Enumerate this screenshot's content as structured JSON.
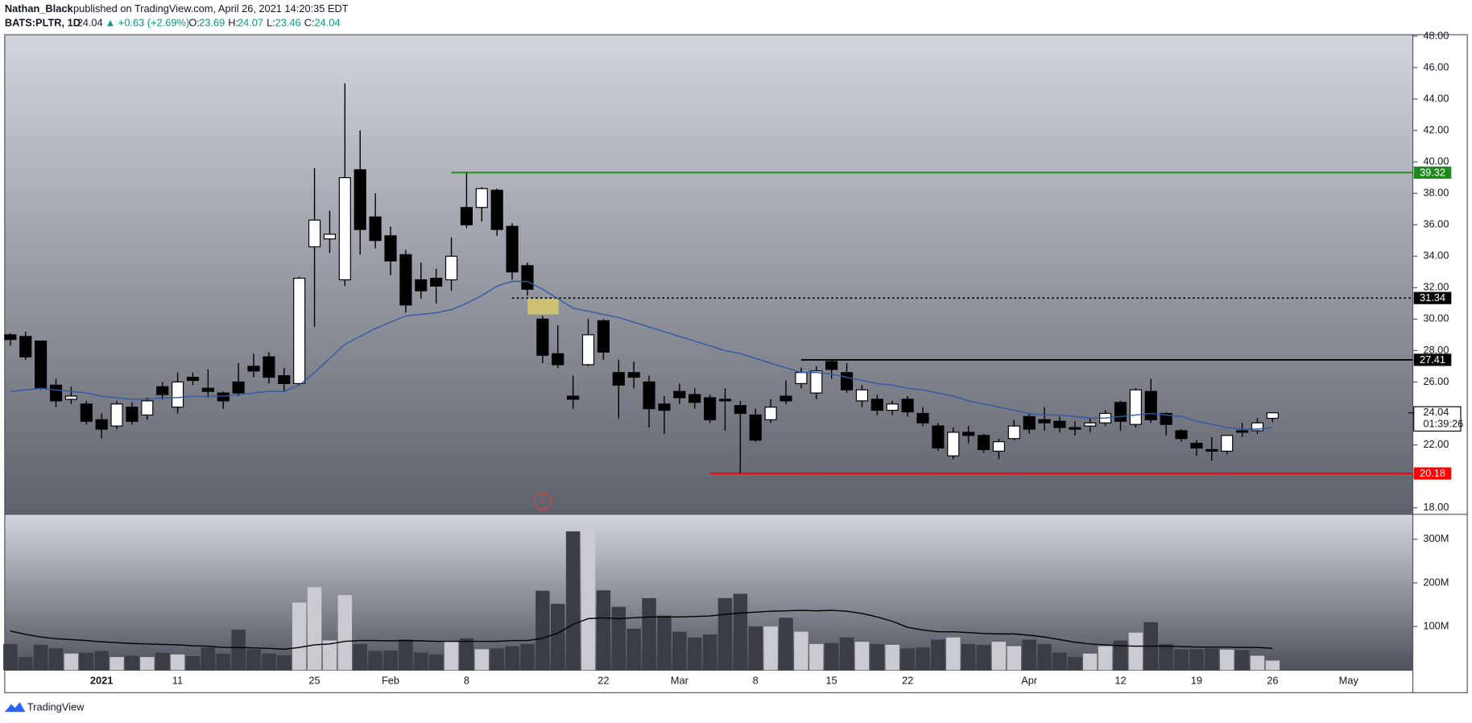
{
  "header": {
    "publisher": "Nathan_Black",
    "published": "published on TradingView.com, April 26, 2021 14:20:35 EDT",
    "symbol": "BATS:PLTR, 1D",
    "price": "24.04",
    "change": "▲ +0.63 (+2.69%)",
    "o_label": "O:",
    "o": "23.69",
    "h_label": "H:",
    "h": "24.07",
    "l_label": "L:",
    "l": "23.46",
    "c_label": "C:",
    "c": "24.04"
  },
  "footer": {
    "brand": "TradingView"
  },
  "chart_data": {
    "type": "candlestick",
    "categories": [
      null,
      null,
      null,
      null,
      null,
      null,
      "2021",
      null,
      null,
      null,
      null,
      "11",
      null,
      null,
      null,
      null,
      null,
      null,
      null,
      null,
      "25",
      null,
      null,
      null,
      null,
      "Feb",
      null,
      null,
      null,
      null,
      "8",
      null,
      null,
      null,
      null,
      null,
      null,
      null,
      null,
      "22",
      null,
      null,
      null,
      null,
      "Mar",
      null,
      null,
      null,
      null,
      "8",
      null,
      null,
      null,
      null,
      "15",
      null,
      null,
      null,
      null,
      "22",
      null,
      null,
      null,
      null,
      null,
      null,
      null,
      "Apr",
      null,
      null,
      null,
      null,
      null,
      "12",
      null,
      null,
      null,
      null,
      "19",
      null,
      null,
      null,
      null,
      "26",
      null,
      null,
      null,
      null,
      "May"
    ],
    "open": [
      29.0,
      28.9,
      28.6,
      25.8,
      24.9,
      24.6,
      23.6,
      23.2,
      24.4,
      23.9,
      25.7,
      24.4,
      26.3,
      25.6,
      25.3,
      26.0,
      27.0,
      27.6,
      26.4,
      25.9,
      34.6,
      35.1,
      32.5,
      39.5,
      36.5,
      35.3,
      34.1,
      32.5,
      32.6,
      32.5,
      37.1,
      37.1,
      38.2,
      35.9,
      33.4,
      30.0,
      27.8,
      25.1,
      27.1,
      29.9,
      26.6,
      26.6,
      26.0,
      24.6,
      25.4,
      25.2,
      25.0,
      24.9,
      24.5,
      23.9,
      23.6,
      25.1,
      25.9,
      25.3,
      27.3,
      26.6,
      24.8,
      24.9,
      24.2,
      24.9,
      24.0,
      23.2,
      21.3,
      22.8,
      22.6,
      21.6,
      22.4,
      23.8,
      23.6,
      23.5,
      23.1,
      23.2,
      23.4,
      24.7,
      23.3,
      25.4,
      24.0,
      22.9,
      22.1,
      21.7,
      21.6,
      22.9,
      22.9,
      23.69,
      null,
      null,
      null,
      null,
      null
    ],
    "high": [
      29.1,
      29.2,
      28.6,
      26.2,
      25.7,
      24.8,
      24.0,
      24.8,
      24.7,
      25.0,
      26.0,
      26.6,
      26.6,
      26.8,
      25.4,
      27.2,
      27.8,
      27.9,
      26.9,
      32.7,
      39.6,
      36.9,
      45.0,
      42.0,
      38.0,
      35.9,
      34.4,
      33.6,
      33.2,
      35.2,
      39.3,
      38.4,
      38.3,
      36.1,
      33.6,
      30.2,
      29.6,
      26.4,
      30.0,
      30.0,
      27.4,
      27.3,
      26.4,
      25.1,
      25.9,
      25.6,
      25.2,
      25.6,
      24.8,
      24.3,
      24.9,
      26.1,
      26.9,
      27.0,
      27.4,
      27.2,
      25.8,
      25.2,
      24.8,
      25.1,
      24.4,
      23.4,
      23.1,
      23.2,
      22.7,
      22.4,
      23.6,
      24.0,
      24.4,
      23.8,
      23.5,
      23.7,
      24.2,
      24.8,
      25.6,
      26.2,
      24.1,
      23.0,
      22.3,
      22.5,
      22.6,
      23.4,
      23.7,
      24.07,
      null,
      null,
      null,
      null,
      null
    ],
    "low": [
      28.3,
      27.4,
      25.5,
      24.4,
      24.6,
      23.3,
      22.4,
      23.0,
      23.3,
      23.6,
      24.9,
      24.0,
      25.8,
      25.0,
      24.3,
      25.1,
      26.3,
      25.9,
      25.4,
      25.8,
      29.5,
      34.2,
      32.1,
      34.1,
      34.5,
      32.8,
      30.4,
      31.3,
      31.0,
      31.8,
      35.8,
      36.2,
      35.3,
      32.5,
      31.5,
      27.2,
      26.9,
      24.3,
      27.0,
      27.4,
      23.7,
      25.6,
      23.1,
      22.7,
      24.6,
      24.3,
      23.4,
      22.9,
      20.2,
      22.2,
      23.4,
      24.6,
      25.6,
      24.9,
      26.2,
      25.3,
      24.4,
      23.9,
      23.9,
      23.8,
      23.2,
      21.6,
      21.1,
      22.1,
      21.5,
      21.1,
      22.3,
      22.7,
      22.9,
      22.8,
      22.6,
      22.8,
      23.2,
      22.9,
      23.1,
      23.4,
      22.6,
      22.2,
      21.3,
      21.0,
      21.4,
      22.5,
      22.7,
      23.46,
      null,
      null,
      null,
      null,
      null
    ],
    "close": [
      28.7,
      27.6,
      25.6,
      24.8,
      25.1,
      23.5,
      23.0,
      24.6,
      23.5,
      24.8,
      25.2,
      26.0,
      26.1,
      25.4,
      24.8,
      25.3,
      26.7,
      26.3,
      25.9,
      32.6,
      36.3,
      35.4,
      39.0,
      35.7,
      35.0,
      33.7,
      30.9,
      31.8,
      32.1,
      34.0,
      36.0,
      38.3,
      35.7,
      33.0,
      31.9,
      27.7,
      27.1,
      24.9,
      29.0,
      27.9,
      25.8,
      26.3,
      24.3,
      24.2,
      25.0,
      24.7,
      23.6,
      24.8,
      24.0,
      22.3,
      24.4,
      24.8,
      26.6,
      26.7,
      26.8,
      25.5,
      25.5,
      24.2,
      24.6,
      24.1,
      23.4,
      21.8,
      22.8,
      22.6,
      21.7,
      22.2,
      23.2,
      23.0,
      23.4,
      23.1,
      23.0,
      23.4,
      24.0,
      23.5,
      25.5,
      23.6,
      23.3,
      22.4,
      21.8,
      21.6,
      22.6,
      22.8,
      23.4,
      24.04,
      null,
      null,
      null,
      null,
      null
    ],
    "ma": [
      25.4,
      25.5,
      25.6,
      25.5,
      25.4,
      25.3,
      25.1,
      25.0,
      24.9,
      24.9,
      25.0,
      25.0,
      25.1,
      25.1,
      25.1,
      25.2,
      25.3,
      25.4,
      25.4,
      25.8,
      26.6,
      27.5,
      28.4,
      28.9,
      29.4,
      29.8,
      30.2,
      30.3,
      30.4,
      30.6,
      31.0,
      31.5,
      32.1,
      32.4,
      32.4,
      31.9,
      31.3,
      30.7,
      30.5,
      30.3,
      30.1,
      29.8,
      29.5,
      29.2,
      28.9,
      28.6,
      28.3,
      28.0,
      27.8,
      27.5,
      27.2,
      26.9,
      26.6,
      26.6,
      26.5,
      26.3,
      26.1,
      25.9,
      25.8,
      25.6,
      25.5,
      25.3,
      25.1,
      24.8,
      24.6,
      24.4,
      24.2,
      24.0,
      23.9,
      23.9,
      23.8,
      23.7,
      23.7,
      23.8,
      23.9,
      24.0,
      23.9,
      23.8,
      23.5,
      23.3,
      23.1,
      23.0,
      23.0,
      23.1,
      null,
      null,
      null,
      null,
      null
    ],
    "volume": [
      60,
      30,
      58,
      50,
      38,
      40,
      44,
      30,
      33,
      30,
      40,
      36,
      32,
      52,
      38,
      93,
      48,
      38,
      34,
      155,
      190,
      68,
      172,
      60,
      44,
      45,
      70,
      40,
      36,
      65,
      73,
      48,
      50,
      55,
      60,
      182,
      152,
      318,
      322,
      183,
      145,
      95,
      165,
      125,
      88,
      75,
      82,
      165,
      175,
      100,
      100,
      120,
      88,
      60,
      62,
      75,
      65,
      60,
      58,
      50,
      52,
      70,
      75,
      60,
      58,
      65,
      55,
      70,
      60,
      40,
      30,
      38,
      55,
      68,
      86,
      110,
      60,
      48,
      48,
      50,
      47,
      46,
      33,
      22,
      null,
      null,
      null,
      null,
      null
    ],
    "volume_ma": [
      90,
      82,
      76,
      72,
      70,
      68,
      65,
      63,
      61,
      60,
      59,
      58,
      56,
      55,
      52,
      52,
      51,
      50,
      48,
      52,
      58,
      60,
      66,
      68,
      68,
      67,
      68,
      67,
      66,
      66,
      66,
      66,
      66,
      68,
      68,
      73,
      85,
      105,
      118,
      120,
      118,
      120,
      122,
      122,
      122,
      123,
      124,
      128,
      131,
      133,
      135,
      136,
      137,
      136,
      137,
      135,
      130,
      122,
      112,
      98,
      92,
      88,
      88,
      86,
      84,
      83,
      83,
      80,
      76,
      70,
      64,
      60,
      58,
      56,
      55,
      55,
      55,
      54,
      53,
      53,
      53,
      52,
      52,
      50,
      null,
      null,
      null,
      null,
      null
    ],
    "ylim": [
      17.58,
      48.09
    ],
    "yticks": [
      {
        "value": 18,
        "label": "18.00"
      },
      {
        "value": 20,
        "label": "20.00"
      },
      {
        "value": 22,
        "label": "22.00"
      },
      {
        "value": 24,
        "label": "24.00"
      },
      {
        "value": 26,
        "label": "26.00"
      },
      {
        "value": 28,
        "label": "28.00"
      },
      {
        "value": 30,
        "label": "30.00"
      },
      {
        "value": 32,
        "label": "32.00"
      },
      {
        "value": 34,
        "label": "34.00"
      },
      {
        "value": 36,
        "label": "36.00"
      },
      {
        "value": 38,
        "label": "38.00"
      },
      {
        "value": 40,
        "label": "40.00"
      },
      {
        "value": 42,
        "label": "42.00"
      },
      {
        "value": 44,
        "label": "44.00"
      },
      {
        "value": 46,
        "label": "46.00"
      },
      {
        "value": 48,
        "label": "48.00"
      }
    ],
    "volume_ylim": [
      0,
      357
    ],
    "volume_ticks": [
      {
        "value": 100,
        "label": "100M"
      },
      {
        "value": 200,
        "label": "200M"
      },
      {
        "value": 300,
        "label": "300M"
      }
    ],
    "grid": false,
    "up_color": "#ffffff",
    "down_color": "#000000",
    "ma_color": "#2f5aa8",
    "volume_up_color": "#c9cbd0",
    "volume_down_color": "#3b3d44",
    "volume_ma_color": "#000000",
    "levels": [
      {
        "value": 39.32,
        "color": "#1e8a1e",
        "style": "solid"
      },
      {
        "value": 31.34,
        "color": "#000000",
        "style": "dotted"
      },
      {
        "value": 27.41,
        "color": "#000000",
        "style": "solid"
      },
      {
        "value": 20.18,
        "color": "#ff0000",
        "style": "solid"
      }
    ],
    "last_price": {
      "value": 24.04,
      "countdown": "01:39:26"
    },
    "earnings_marker": "E"
  }
}
